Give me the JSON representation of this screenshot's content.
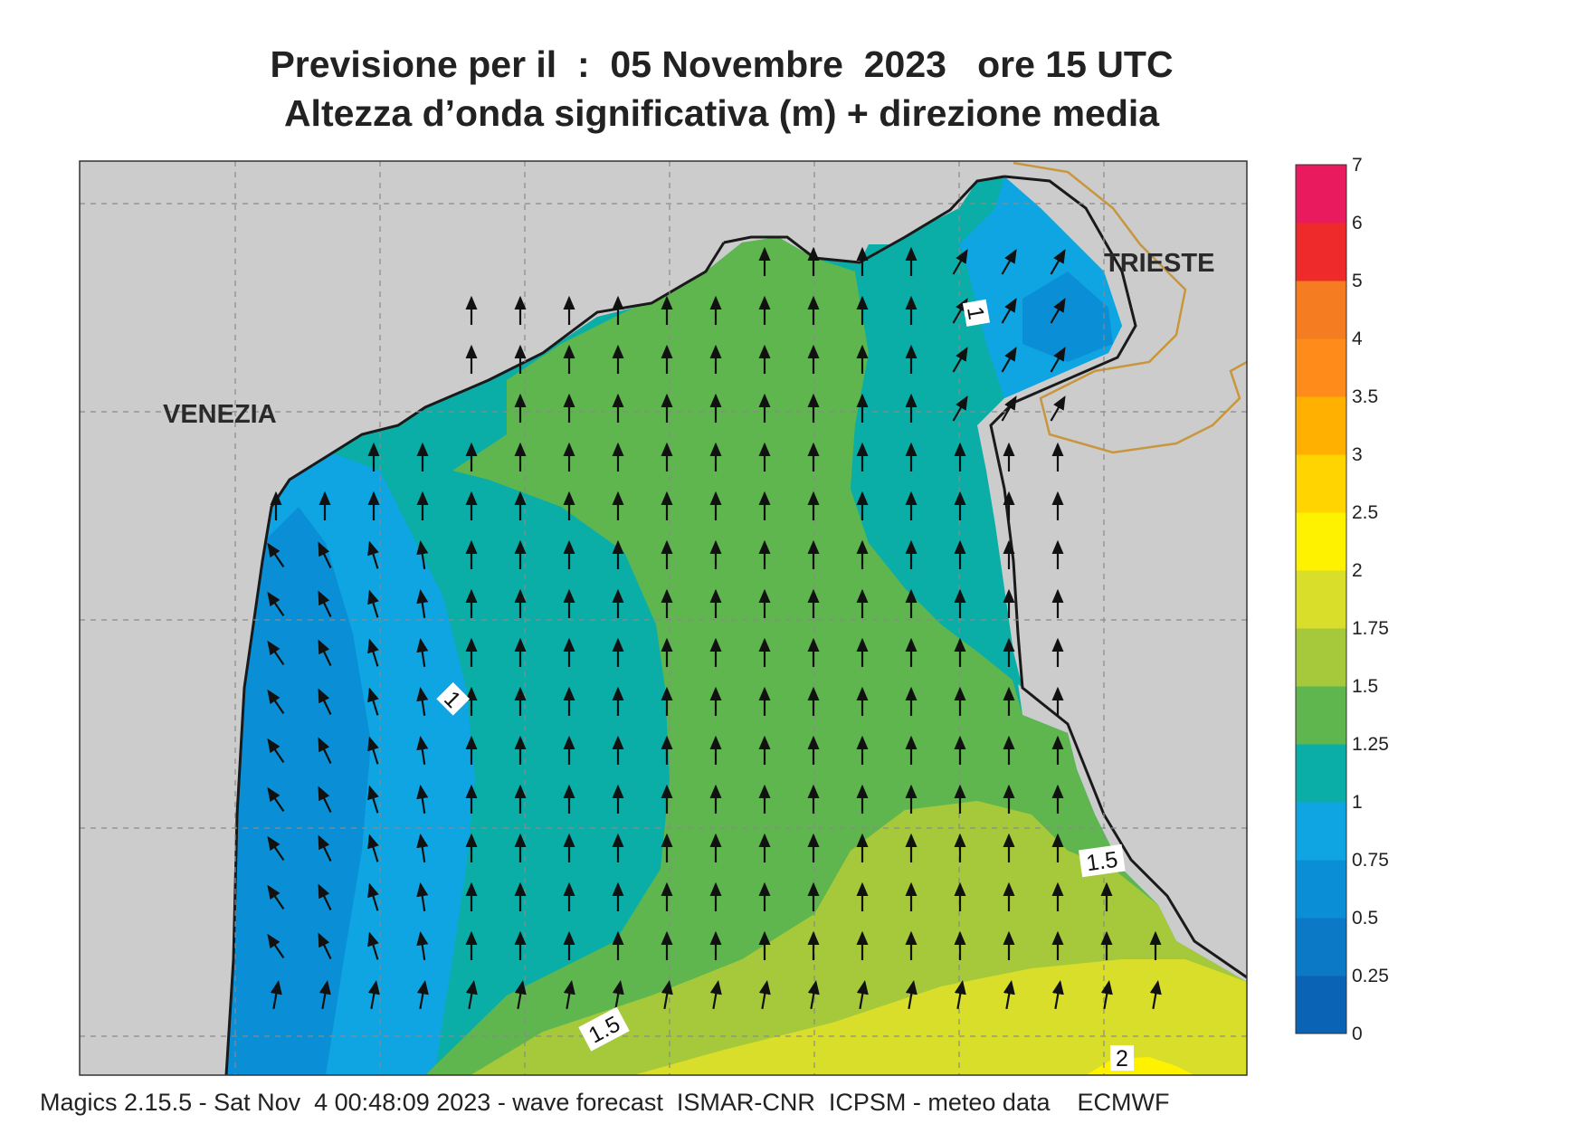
{
  "title": {
    "line1": "Previsione per il  :  05 Novembre  2023   ore 15 UTC",
    "line2": "Altezza d’onda significativa (m) + direzione media"
  },
  "map": {
    "place_labels": [
      "VENEZIA",
      "TRIESTE"
    ],
    "contour_labels": [
      "1",
      "1",
      "1.5",
      "1.5",
      "2"
    ],
    "colors": {
      "land": "#cccccc",
      "coast": "#1a1a1a",
      "border": "#c8963c",
      "grid": "#8a8a8a"
    }
  },
  "legend": {
    "levels": [
      "0",
      "0.25",
      "0.5",
      "0.75",
      "1",
      "1.25",
      "1.5",
      "1.75",
      "2",
      "2.5",
      "3",
      "3.5",
      "4",
      "5",
      "6",
      "7"
    ],
    "colors": [
      "#0a63b4",
      "#0b79c6",
      "#0a8fd6",
      "#0ea5e2",
      "#0aaea7",
      "#5fb64f",
      "#a6c93b",
      "#d8de2a",
      "#fff200",
      "#ffd400",
      "#ffb000",
      "#ff8c1a",
      "#f57c20",
      "#ee2a2a",
      "#ea1a5e"
    ]
  },
  "footer": "Magics 2.15.5 - Sat Nov  4 00:48:09 2023 - wave forecast  ISMAR-CNR  ICPSM - meteo data    ECMWF"
}
